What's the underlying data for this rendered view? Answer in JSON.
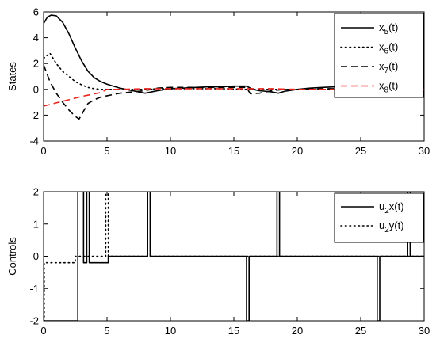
{
  "chart_data": [
    {
      "type": "line",
      "ylabel": "States",
      "xlim": [
        0,
        30
      ],
      "ylim": [
        -4,
        6
      ],
      "xticks": [
        0,
        5,
        10,
        15,
        20,
        25,
        30
      ],
      "yticks": [
        -4,
        -2,
        0,
        2,
        4,
        6
      ],
      "grid": false,
      "legend_position": "top-right",
      "series": [
        {
          "name": "x5(t)",
          "label_main": "x",
          "label_sub": "5",
          "label_tail": "(t)",
          "color": "#000000",
          "dash": "solid",
          "x": [
            0,
            0.3,
            0.6,
            1,
            1.5,
            2,
            2.5,
            3,
            3.5,
            4,
            4.5,
            5,
            5.5,
            6,
            6.5,
            7,
            7.5,
            8,
            8.5,
            9,
            10,
            11,
            12,
            13,
            14,
            15,
            16,
            16.5,
            17,
            17.5,
            18,
            18.5,
            19,
            20,
            21,
            22,
            23,
            24,
            25,
            26,
            27,
            28,
            29,
            30
          ],
          "y": [
            5.1,
            5.6,
            5.75,
            5.7,
            5.2,
            4.3,
            3.2,
            2.2,
            1.4,
            0.9,
            0.6,
            0.4,
            0.25,
            0.1,
            0.0,
            -0.1,
            -0.2,
            -0.3,
            -0.2,
            -0.1,
            0.05,
            0.1,
            0.15,
            0.2,
            0.2,
            0.25,
            0.25,
            0.0,
            -0.1,
            -0.15,
            -0.2,
            -0.3,
            -0.15,
            0.0,
            0.1,
            0.15,
            0.2,
            0.2,
            0.2,
            0.15,
            0.1,
            0.15,
            0.1,
            0.1
          ]
        },
        {
          "name": "x6(t)",
          "label_main": "x",
          "label_sub": "6",
          "label_tail": "(t)",
          "color": "#000000",
          "dash": "dotted",
          "x": [
            0,
            0.5,
            1,
            1.5,
            2,
            2.5,
            3,
            3.5,
            4,
            4.5,
            5,
            6,
            7,
            8,
            9,
            10,
            12,
            14,
            16,
            18,
            20,
            22,
            24,
            26,
            28,
            30
          ],
          "y": [
            2.4,
            2.8,
            2.0,
            1.4,
            1.0,
            0.6,
            0.35,
            0.15,
            0.05,
            0.0,
            0.0,
            0.0,
            0.0,
            0.0,
            0.05,
            0.05,
            0.05,
            0.05,
            0.0,
            0.0,
            0.0,
            0.0,
            0.0,
            0.0,
            0.0,
            0.0
          ]
        },
        {
          "name": "x7(t)",
          "label_main": "x",
          "label_sub": "7",
          "label_tail": "(t)",
          "color": "#000000",
          "dash": "dashed",
          "x": [
            0,
            0.5,
            1,
            1.5,
            2,
            2.5,
            2.8,
            3.2,
            3.5,
            4,
            4.5,
            5,
            6,
            7,
            8,
            9,
            10,
            12,
            14,
            16,
            16.3,
            17,
            18,
            19,
            20,
            22,
            24,
            26,
            28,
            30
          ],
          "y": [
            1.9,
            0.6,
            -0.3,
            -1.0,
            -1.6,
            -2.1,
            -2.3,
            -1.6,
            -1.1,
            -0.8,
            -0.6,
            -0.5,
            -0.3,
            -0.2,
            -0.1,
            0.1,
            0.15,
            0.15,
            0.15,
            0.15,
            -0.35,
            -0.3,
            -0.1,
            0.0,
            0.0,
            0.05,
            0.05,
            0.05,
            0.05,
            0.05
          ]
        },
        {
          "name": "x8(t)",
          "label_main": "x",
          "label_sub": "8",
          "label_tail": "(t)",
          "color": "#e8231b",
          "dash": "dashed",
          "x": [
            0,
            1,
            2,
            3,
            4,
            4.5,
            5,
            6,
            8,
            10,
            12,
            14,
            16,
            18,
            20,
            22,
            24,
            26,
            28,
            30
          ],
          "y": [
            -1.3,
            -1.05,
            -0.8,
            -0.55,
            -0.35,
            -0.25,
            0.0,
            0.0,
            0.05,
            0.05,
            0.05,
            0.05,
            0.05,
            0.05,
            0.0,
            0.0,
            0.0,
            0.0,
            0.0,
            0.0
          ]
        }
      ]
    },
    {
      "type": "line",
      "ylabel": "Controls",
      "xlim": [
        0,
        30
      ],
      "ylim": [
        -2,
        2
      ],
      "xticks": [
        0,
        5,
        10,
        15,
        20,
        25,
        30
      ],
      "yticks": [
        -2,
        -1,
        0,
        1,
        2
      ],
      "grid": false,
      "legend_position": "top-right",
      "series": [
        {
          "name": "u2x(t)",
          "label_main": "u",
          "label_sub": "2",
          "label_tail": "x(t)",
          "color": "#000000",
          "dash": "solid",
          "x": [
            0,
            2.7,
            2.7,
            2.9,
            2.9,
            3.1,
            3.1,
            3.15,
            3.15,
            3.4,
            3.4,
            3.6,
            3.6,
            3.7,
            3.7,
            5.0,
            5.0,
            5.1,
            5.1,
            8.2,
            8.2,
            8.4,
            8.4,
            16.0,
            16.0,
            16.2,
            16.2,
            18.4,
            18.4,
            18.6,
            18.6,
            26.3,
            26.3,
            26.5,
            26.5,
            28.7,
            28.7,
            28.9,
            28.9,
            30
          ],
          "y": [
            -2,
            -2,
            2,
            2,
            2,
            2,
            2,
            2,
            -0.2,
            -0.2,
            2,
            2,
            -0.2,
            -0.2,
            -0.2,
            -0.2,
            -0.2,
            -0.2,
            0,
            0,
            2,
            2,
            0,
            0,
            -2,
            -2,
            0,
            0,
            2,
            2,
            0,
            0,
            -2,
            -2,
            0,
            0,
            2,
            2,
            0,
            0
          ]
        },
        {
          "name": "u2y(t)",
          "label_main": "u",
          "label_sub": "2",
          "label_tail": "y(t)",
          "color": "#000000",
          "dash": "dotted",
          "x": [
            0,
            0.05,
            0.05,
            2.5,
            2.5,
            4.9,
            4.9,
            5.1,
            5.1,
            30
          ],
          "y": [
            -2,
            -2,
            -0.2,
            -0.2,
            0,
            0,
            2,
            2,
            0,
            0
          ]
        }
      ]
    }
  ]
}
